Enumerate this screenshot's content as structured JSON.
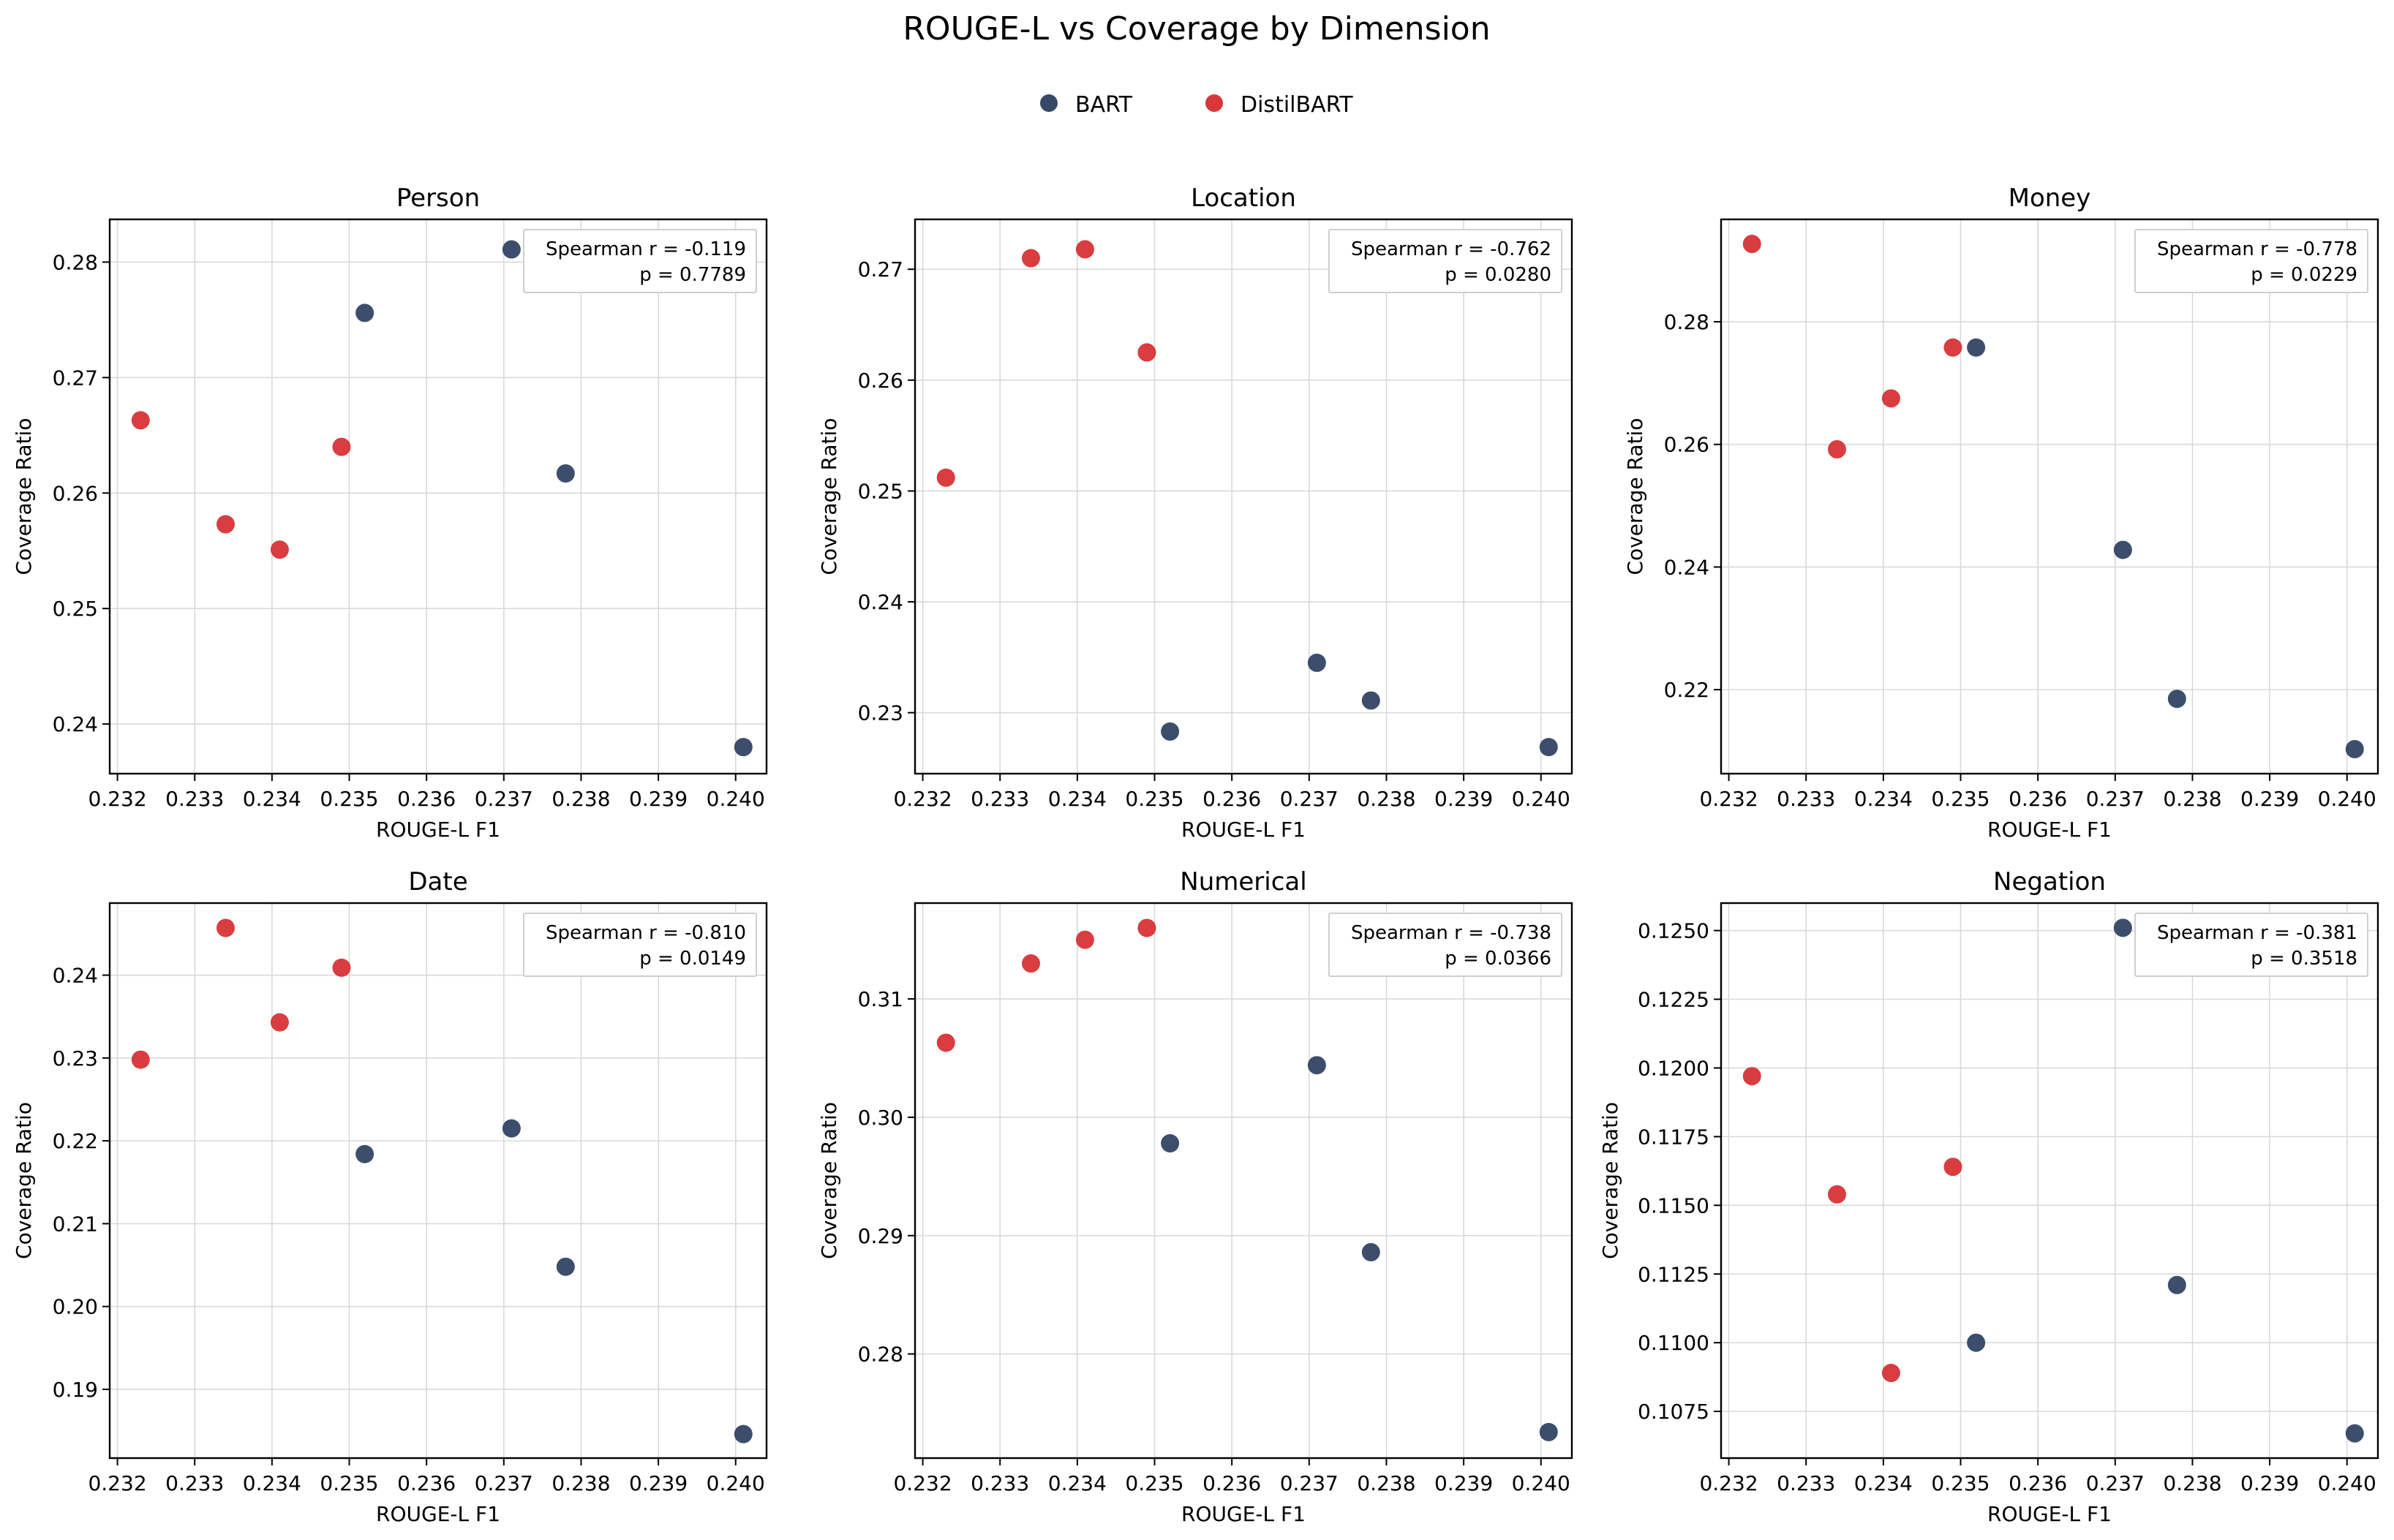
{
  "chart_data": {
    "type": "scatter",
    "title": "ROUGE-L vs Coverage by Dimension",
    "legend": {
      "placement": "top-center",
      "entries": [
        {
          "name": "BART",
          "color": "#2b3f5f"
        },
        {
          "name": "DistilBART",
          "color": "#d62d2f"
        }
      ]
    },
    "xlabel": "ROUGE-L F1",
    "ylabel": "Coverage Ratio",
    "xlim": [
      0.2319,
      0.2404
    ],
    "xticks": [
      0.232,
      0.233,
      0.234,
      0.235,
      0.236,
      0.237,
      0.238,
      0.239,
      0.24
    ],
    "xtick_labels": [
      "0.232",
      "0.233",
      "0.234",
      "0.235",
      "0.236",
      "0.237",
      "0.238",
      "0.239",
      "0.240"
    ],
    "grid": true,
    "panels": [
      {
        "title": "Person",
        "ylim": [
          0.2357,
          0.2837
        ],
        "yticks": [
          0.24,
          0.25,
          0.26,
          0.27,
          0.28
        ],
        "ytick_labels": [
          "0.24",
          "0.25",
          "0.26",
          "0.27",
          "0.28"
        ],
        "annotation": [
          "Spearman r = -0.119",
          "p = 0.7789"
        ],
        "series": [
          {
            "name": "BART",
            "points": [
              [
                0.2371,
                0.2811
              ],
              [
                0.2352,
                0.2756
              ],
              [
                0.2378,
                0.2617
              ],
              [
                0.2401,
                0.238
              ]
            ]
          },
          {
            "name": "DistilBART",
            "points": [
              [
                0.2323,
                0.2663
              ],
              [
                0.2334,
                0.2573
              ],
              [
                0.2341,
                0.2551
              ],
              [
                0.2349,
                0.264
              ]
            ]
          }
        ]
      },
      {
        "title": "Location",
        "ylim": [
          0.2245,
          0.2745
        ],
        "yticks": [
          0.23,
          0.24,
          0.25,
          0.26,
          0.27
        ],
        "ytick_labels": [
          "0.23",
          "0.24",
          "0.25",
          "0.26",
          "0.27"
        ],
        "annotation": [
          "Spearman r = -0.762",
          "p = 0.0280"
        ],
        "series": [
          {
            "name": "BART",
            "points": [
              [
                0.2352,
                0.2283
              ],
              [
                0.2371,
                0.2345
              ],
              [
                0.2378,
                0.2311
              ],
              [
                0.2401,
                0.2269
              ]
            ]
          },
          {
            "name": "DistilBART",
            "points": [
              [
                0.2323,
                0.2512
              ],
              [
                0.2334,
                0.271
              ],
              [
                0.2341,
                0.2718
              ],
              [
                0.2349,
                0.2625
              ]
            ]
          }
        ]
      },
      {
        "title": "Money",
        "ylim": [
          0.2063,
          0.2967
        ],
        "yticks": [
          0.22,
          0.24,
          0.26,
          0.28
        ],
        "ytick_labels": [
          "0.22",
          "0.24",
          "0.26",
          "0.28"
        ],
        "annotation": [
          "Spearman r = -0.778",
          "p = 0.0229"
        ],
        "series": [
          {
            "name": "BART",
            "points": [
              [
                0.2352,
                0.2758
              ],
              [
                0.2371,
                0.2428
              ],
              [
                0.2378,
                0.2185
              ],
              [
                0.2401,
                0.2103
              ]
            ]
          },
          {
            "name": "DistilBART",
            "points": [
              [
                0.2323,
                0.2927
              ],
              [
                0.2334,
                0.2592
              ],
              [
                0.2341,
                0.2675
              ],
              [
                0.2349,
                0.2758
              ]
            ]
          }
        ]
      },
      {
        "title": "Date",
        "ylim": [
          0.1817,
          0.2487
        ],
        "yticks": [
          0.19,
          0.2,
          0.21,
          0.22,
          0.23,
          0.24
        ],
        "ytick_labels": [
          "0.19",
          "0.20",
          "0.21",
          "0.22",
          "0.23",
          "0.24"
        ],
        "annotation": [
          "Spearman r = -0.810",
          "p = 0.0149"
        ],
        "series": [
          {
            "name": "BART",
            "points": [
              [
                0.2352,
                0.2184
              ],
              [
                0.2371,
                0.2215
              ],
              [
                0.2378,
                0.2048
              ],
              [
                0.2401,
                0.1846
              ]
            ]
          },
          {
            "name": "DistilBART",
            "points": [
              [
                0.2323,
                0.2298
              ],
              [
                0.2334,
                0.2457
              ],
              [
                0.2341,
                0.2343
              ],
              [
                0.2349,
                0.2409
              ]
            ]
          }
        ]
      },
      {
        "title": "Numerical",
        "ylim": [
          0.2712,
          0.3181
        ],
        "yticks": [
          0.28,
          0.29,
          0.3,
          0.31
        ],
        "ytick_labels": [
          "0.28",
          "0.29",
          "0.30",
          "0.31"
        ],
        "annotation": [
          "Spearman r = -0.738",
          "p = 0.0366"
        ],
        "series": [
          {
            "name": "BART",
            "points": [
              [
                0.2352,
                0.2978
              ],
              [
                0.2371,
                0.3044
              ],
              [
                0.2378,
                0.2886
              ],
              [
                0.2401,
                0.2734
              ]
            ]
          },
          {
            "name": "DistilBART",
            "points": [
              [
                0.2323,
                0.3063
              ],
              [
                0.2334,
                0.313
              ],
              [
                0.2341,
                0.315
              ],
              [
                0.2349,
                0.316
              ]
            ]
          }
        ]
      },
      {
        "title": "Negation",
        "ylim": [
          0.1058,
          0.126
        ],
        "yticks": [
          0.1075,
          0.11,
          0.1125,
          0.115,
          0.1175,
          0.12,
          0.1225,
          0.125
        ],
        "ytick_labels": [
          "0.1075",
          "0.1100",
          "0.1125",
          "0.1150",
          "0.1175",
          "0.1200",
          "0.1225",
          "0.1250"
        ],
        "annotation": [
          "Spearman r = -0.381",
          "p = 0.3518"
        ],
        "series": [
          {
            "name": "BART",
            "points": [
              [
                0.2352,
                0.11
              ],
              [
                0.2371,
                0.1251
              ],
              [
                0.2378,
                0.1121
              ],
              [
                0.2401,
                0.1067
              ]
            ]
          },
          {
            "name": "DistilBART",
            "points": [
              [
                0.2323,
                0.1197
              ],
              [
                0.2334,
                0.1154
              ],
              [
                0.2341,
                0.1089
              ],
              [
                0.2349,
                0.1164
              ]
            ]
          }
        ]
      }
    ]
  }
}
